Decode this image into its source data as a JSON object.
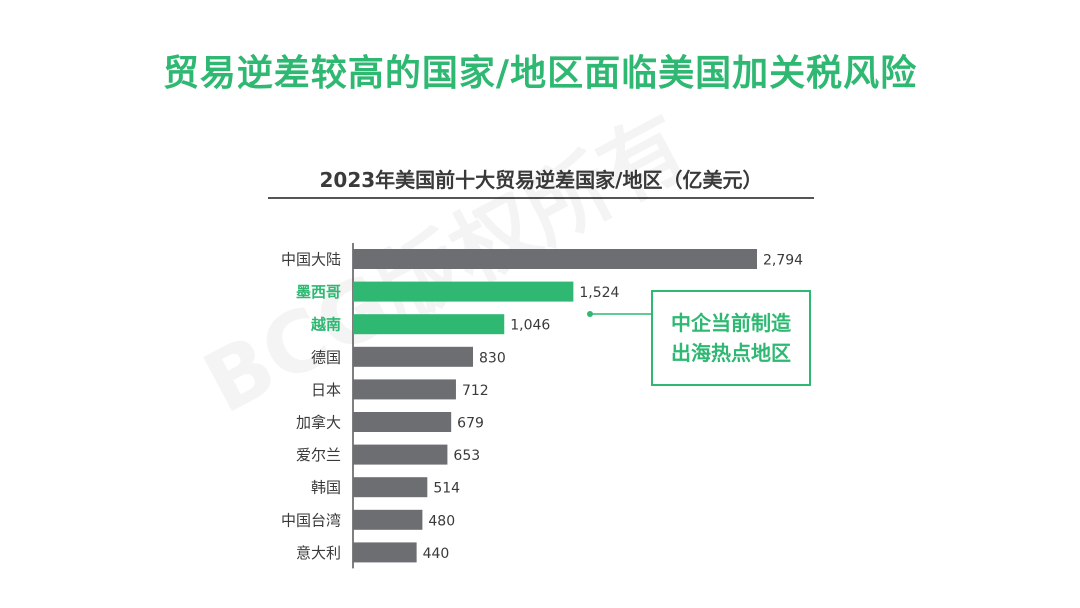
{
  "page": {
    "title": "贸易逆差较高的国家/地区面临美国加关税风险",
    "watermark": "BCG版权所有"
  },
  "callout": {
    "line1": "中企当前制造",
    "line2": "出海热点地区"
  },
  "colors": {
    "accent": "#2eb872",
    "bar": "#6d6e71",
    "label_default": "#3a3a3a",
    "value_text": "#3a3a3a"
  },
  "chart_data": {
    "type": "bar",
    "orientation": "horizontal",
    "title": "2023年美国前十大贸易逆差国家/地区（亿美元）",
    "categories": [
      "中国大陆",
      "墨西哥",
      "越南",
      "德国",
      "日本",
      "加拿大",
      "爱尔兰",
      "韩国",
      "中国台湾",
      "意大利"
    ],
    "values": [
      2794,
      1524,
      1046,
      830,
      712,
      679,
      653,
      514,
      480,
      440
    ],
    "value_labels": [
      "2,794",
      "1,524",
      "1,046",
      "830",
      "712",
      "679",
      "653",
      "514",
      "480",
      "440"
    ],
    "highlighted": [
      "墨西哥",
      "越南"
    ],
    "xlim": [
      0,
      2794
    ],
    "grid": false,
    "legend": "none"
  }
}
